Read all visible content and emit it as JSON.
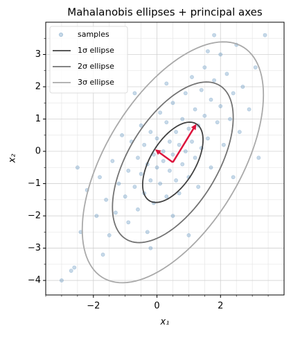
{
  "chart_data": {
    "type": "scatter",
    "title": "Mahalanobis ellipses + principal axes",
    "x_label": "x₁",
    "y_label": "x₂",
    "xlim": [
      -3.5,
      4.0
    ],
    "ylim": [
      -4.45,
      4.0
    ],
    "xticks": [
      {
        "value": -2,
        "label": "−2"
      },
      0,
      2
    ],
    "yticks": [
      {
        "value": -4,
        "label": "−4"
      },
      {
        "value": -3,
        "label": "−3"
      },
      {
        "value": -2,
        "label": "−2"
      },
      {
        "value": -1,
        "label": "−1"
      },
      0,
      1,
      2,
      3
    ],
    "x_minor_ticks": [
      -3.5,
      -3,
      -2.5,
      -1.5,
      -1,
      -0.5,
      0.5,
      1,
      1.5,
      2.5,
      3,
      3.5
    ],
    "y_minor_ticks": [
      -4.5,
      -3.5,
      -2.5,
      -1.5,
      -0.5,
      0.5,
      1.5,
      2.5,
      3.5
    ],
    "grid": true,
    "legend": "upper left",
    "series": [
      {
        "name": "samples",
        "color": "#4682b4",
        "x": [
          -3.0,
          -2.7,
          -2.6,
          -2.4,
          -2.2,
          -1.9,
          -1.8,
          -1.6,
          -1.5,
          -1.4,
          -1.3,
          -1.2,
          -1.1,
          -1.0,
          -0.9,
          -0.9,
          -0.8,
          -0.7,
          -0.6,
          -0.6,
          -0.5,
          -0.5,
          -0.4,
          -0.4,
          -0.3,
          -0.3,
          -0.2,
          -0.2,
          -0.1,
          -0.1,
          0.0,
          0.0,
          0.1,
          0.1,
          0.2,
          0.2,
          0.3,
          0.3,
          0.4,
          0.4,
          0.5,
          0.5,
          0.5,
          0.6,
          0.6,
          0.7,
          0.7,
          0.8,
          0.8,
          0.9,
          0.9,
          1.0,
          1.0,
          1.1,
          1.1,
          1.2,
          1.2,
          1.3,
          1.3,
          1.4,
          1.4,
          1.5,
          1.5,
          1.6,
          1.7,
          1.7,
          1.8,
          1.9,
          2.0,
          2.0,
          2.1,
          2.2,
          2.3,
          2.4,
          2.5,
          2.6,
          2.7,
          2.9,
          3.1,
          3.4,
          1.8,
          -2.5,
          3.2,
          -0.7,
          1.0,
          -1.7,
          0.3,
          2.4,
          -0.2,
          1.6
        ],
        "y": [
          -4.0,
          -3.7,
          -3.6,
          -2.5,
          -1.2,
          -2.0,
          -0.8,
          -1.5,
          -2.6,
          -0.3,
          -1.9,
          -1.0,
          0.5,
          -1.4,
          -2.2,
          -0.6,
          0.3,
          -1.1,
          -0.2,
          -1.8,
          0.8,
          -0.7,
          -1.3,
          0.2,
          -0.4,
          -2.5,
          0.6,
          -0.9,
          -0.1,
          -1.6,
          0.4,
          -0.5,
          1.2,
          -1.0,
          0.0,
          -0.3,
          0.9,
          -1.4,
          0.3,
          -0.6,
          1.5,
          -0.1,
          -2.0,
          0.6,
          -0.9,
          0.2,
          -1.3,
          1.0,
          -0.4,
          1.8,
          0.0,
          -0.8,
          0.7,
          2.3,
          0.3,
          -0.2,
          1.3,
          0.8,
          -1.1,
          1.9,
          0.1,
          2.6,
          1.1,
          0.4,
          1.6,
          -0.5,
          2.2,
          0.9,
          3.0,
          1.4,
          0.2,
          2.4,
          1.0,
          1.8,
          3.3,
          0.6,
          2.0,
          1.3,
          2.6,
          3.6,
          3.6,
          -0.5,
          -0.2,
          1.8,
          -2.6,
          -3.2,
          2.1,
          -0.8,
          -3.0,
          3.1
        ]
      }
    ],
    "ellipses": {
      "center": [
        0.5,
        -0.34
      ],
      "semi_axes": [
        1.4,
        0.7
      ],
      "angle_deg": 58,
      "series": [
        {
          "name": "1σ ellipse",
          "scale": 1,
          "color": "#404040"
        },
        {
          "name": "2σ ellipse",
          "scale": 2,
          "color": "#737373"
        },
        {
          "name": "3σ ellipse",
          "scale": 3,
          "color": "#a9a9a9"
        }
      ]
    },
    "arrows": {
      "origin": [
        0.5,
        -0.34
      ],
      "vectors": [
        [
          0.74,
          1.19
        ],
        [
          -0.56,
          0.4
        ]
      ],
      "color": "#dc143c"
    }
  }
}
